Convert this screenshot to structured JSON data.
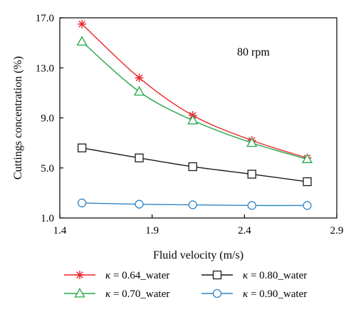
{
  "chart_data": {
    "type": "line",
    "xlabel": "Fluid velocity (m/s)",
    "ylabel": "Cuttings concentration (%)",
    "xlim": [
      1.4,
      2.9
    ],
    "ylim": [
      1.0,
      17.0
    ],
    "xticks": [
      1.4,
      1.9,
      2.4,
      2.9
    ],
    "yticks": [
      1.0,
      5.0,
      9.0,
      13.0,
      17.0
    ],
    "xtick_labels": [
      "1.4",
      "1.9",
      "2.4",
      "2.9"
    ],
    "ytick_labels": [
      "1.0",
      "5.0",
      "9.0",
      "13.0",
      "17.0"
    ],
    "annotation": "80 rpm",
    "grid": false,
    "legend_position": "bottom",
    "series": [
      {
        "name": "κ = 0.64_water",
        "kappa_symbol": "κ",
        "label_rest": " = 0.64_water",
        "marker": "star",
        "color": "#e8262c",
        "x": [
          1.52,
          1.83,
          2.12,
          2.44,
          2.74
        ],
        "y": [
          16.5,
          12.2,
          9.2,
          7.2,
          5.8
        ]
      },
      {
        "name": "κ = 0.70_water",
        "kappa_symbol": "κ",
        "label_rest": " = 0.70_water",
        "marker": "triangle",
        "color": "#22a84a",
        "x": [
          1.52,
          1.83,
          2.12,
          2.44,
          2.74
        ],
        "y": [
          15.1,
          11.1,
          8.8,
          7.0,
          5.7
        ]
      },
      {
        "name": "κ = 0.80_water",
        "kappa_symbol": "κ",
        "label_rest": " = 0.80_water",
        "marker": "square",
        "color": "#1a1a1a",
        "x": [
          1.52,
          1.83,
          2.12,
          2.44,
          2.74
        ],
        "y": [
          6.6,
          5.8,
          5.1,
          4.5,
          3.9
        ]
      },
      {
        "name": "κ = 0.90_water",
        "kappa_symbol": "κ",
        "label_rest": " = 0.90_water",
        "marker": "circle",
        "color": "#2f86c8",
        "x": [
          1.52,
          1.83,
          2.12,
          2.44,
          2.74
        ],
        "y": [
          2.2,
          2.1,
          2.05,
          2.0,
          2.0
        ]
      }
    ]
  }
}
